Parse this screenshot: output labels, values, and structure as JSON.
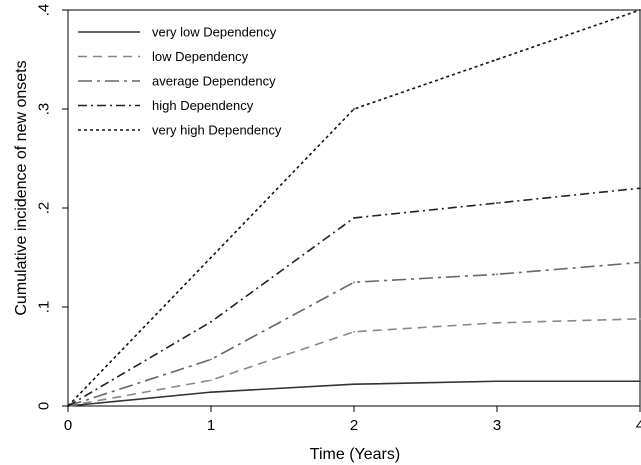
{
  "chart_data": {
    "type": "line",
    "title": "",
    "xlabel": "Time (Years)",
    "ylabel": "Cumulative incidence of new onsets",
    "xlim": [
      0,
      4
    ],
    "ylim": [
      0,
      0.4
    ],
    "x_ticks": [
      0,
      1,
      2,
      3,
      4
    ],
    "x_tick_labels": [
      "0",
      "1",
      "2",
      "3",
      "4"
    ],
    "y_ticks": [
      0,
      0.1,
      0.2,
      0.3,
      0.4
    ],
    "y_tick_labels": [
      "0",
      ".1",
      ".2",
      ".3",
      ".4"
    ],
    "grid": false,
    "legend_position": "top-left",
    "x": [
      0,
      1,
      2,
      3,
      4
    ],
    "series": [
      {
        "name": "very low Dependency",
        "values": [
          0,
          0.014,
          0.022,
          0.025,
          0.025
        ],
        "color": "#333333",
        "dash": "solid"
      },
      {
        "name": "low Dependency",
        "values": [
          0,
          0.026,
          0.075,
          0.084,
          0.088
        ],
        "color": "#888888",
        "dash": "dash"
      },
      {
        "name": "average Dependency",
        "values": [
          0,
          0.047,
          0.125,
          0.133,
          0.145
        ],
        "color": "#666666",
        "dash": "longdash-dot"
      },
      {
        "name": "high Dependency",
        "values": [
          0,
          0.085,
          0.19,
          0.205,
          0.22
        ],
        "color": "#222222",
        "dash": "dashdot"
      },
      {
        "name": "very high Dependency",
        "values": [
          0,
          0.15,
          0.3,
          0.35,
          0.4
        ],
        "color": "#111111",
        "dash": "dot"
      }
    ]
  }
}
